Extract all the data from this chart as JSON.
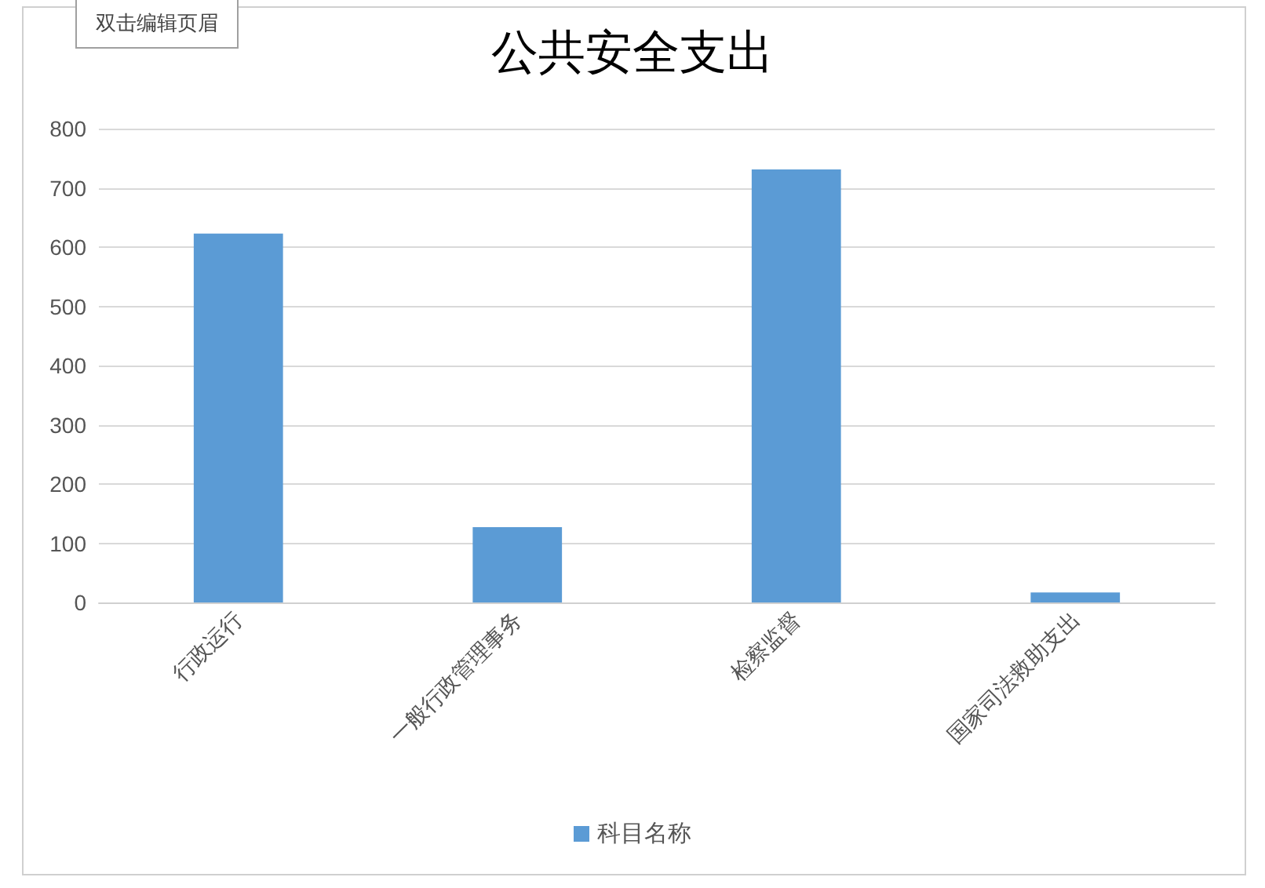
{
  "chart_data": {
    "type": "bar",
    "title": "公共安全支出",
    "categories": [
      "行政运行",
      "一般行政管理事务",
      "检察监督",
      "国家司法救助支出"
    ],
    "series": [
      {
        "name": "科目名称",
        "color": "#5b9bd5",
        "values": [
          623,
          127,
          731,
          17
        ]
      }
    ],
    "ylim": [
      0,
      800
    ],
    "yticks": [
      0,
      100,
      200,
      300,
      400,
      500,
      600,
      700,
      800
    ],
    "grid": "y",
    "legend": "bottom",
    "annotations": [
      "双击编辑页眉"
    ]
  }
}
